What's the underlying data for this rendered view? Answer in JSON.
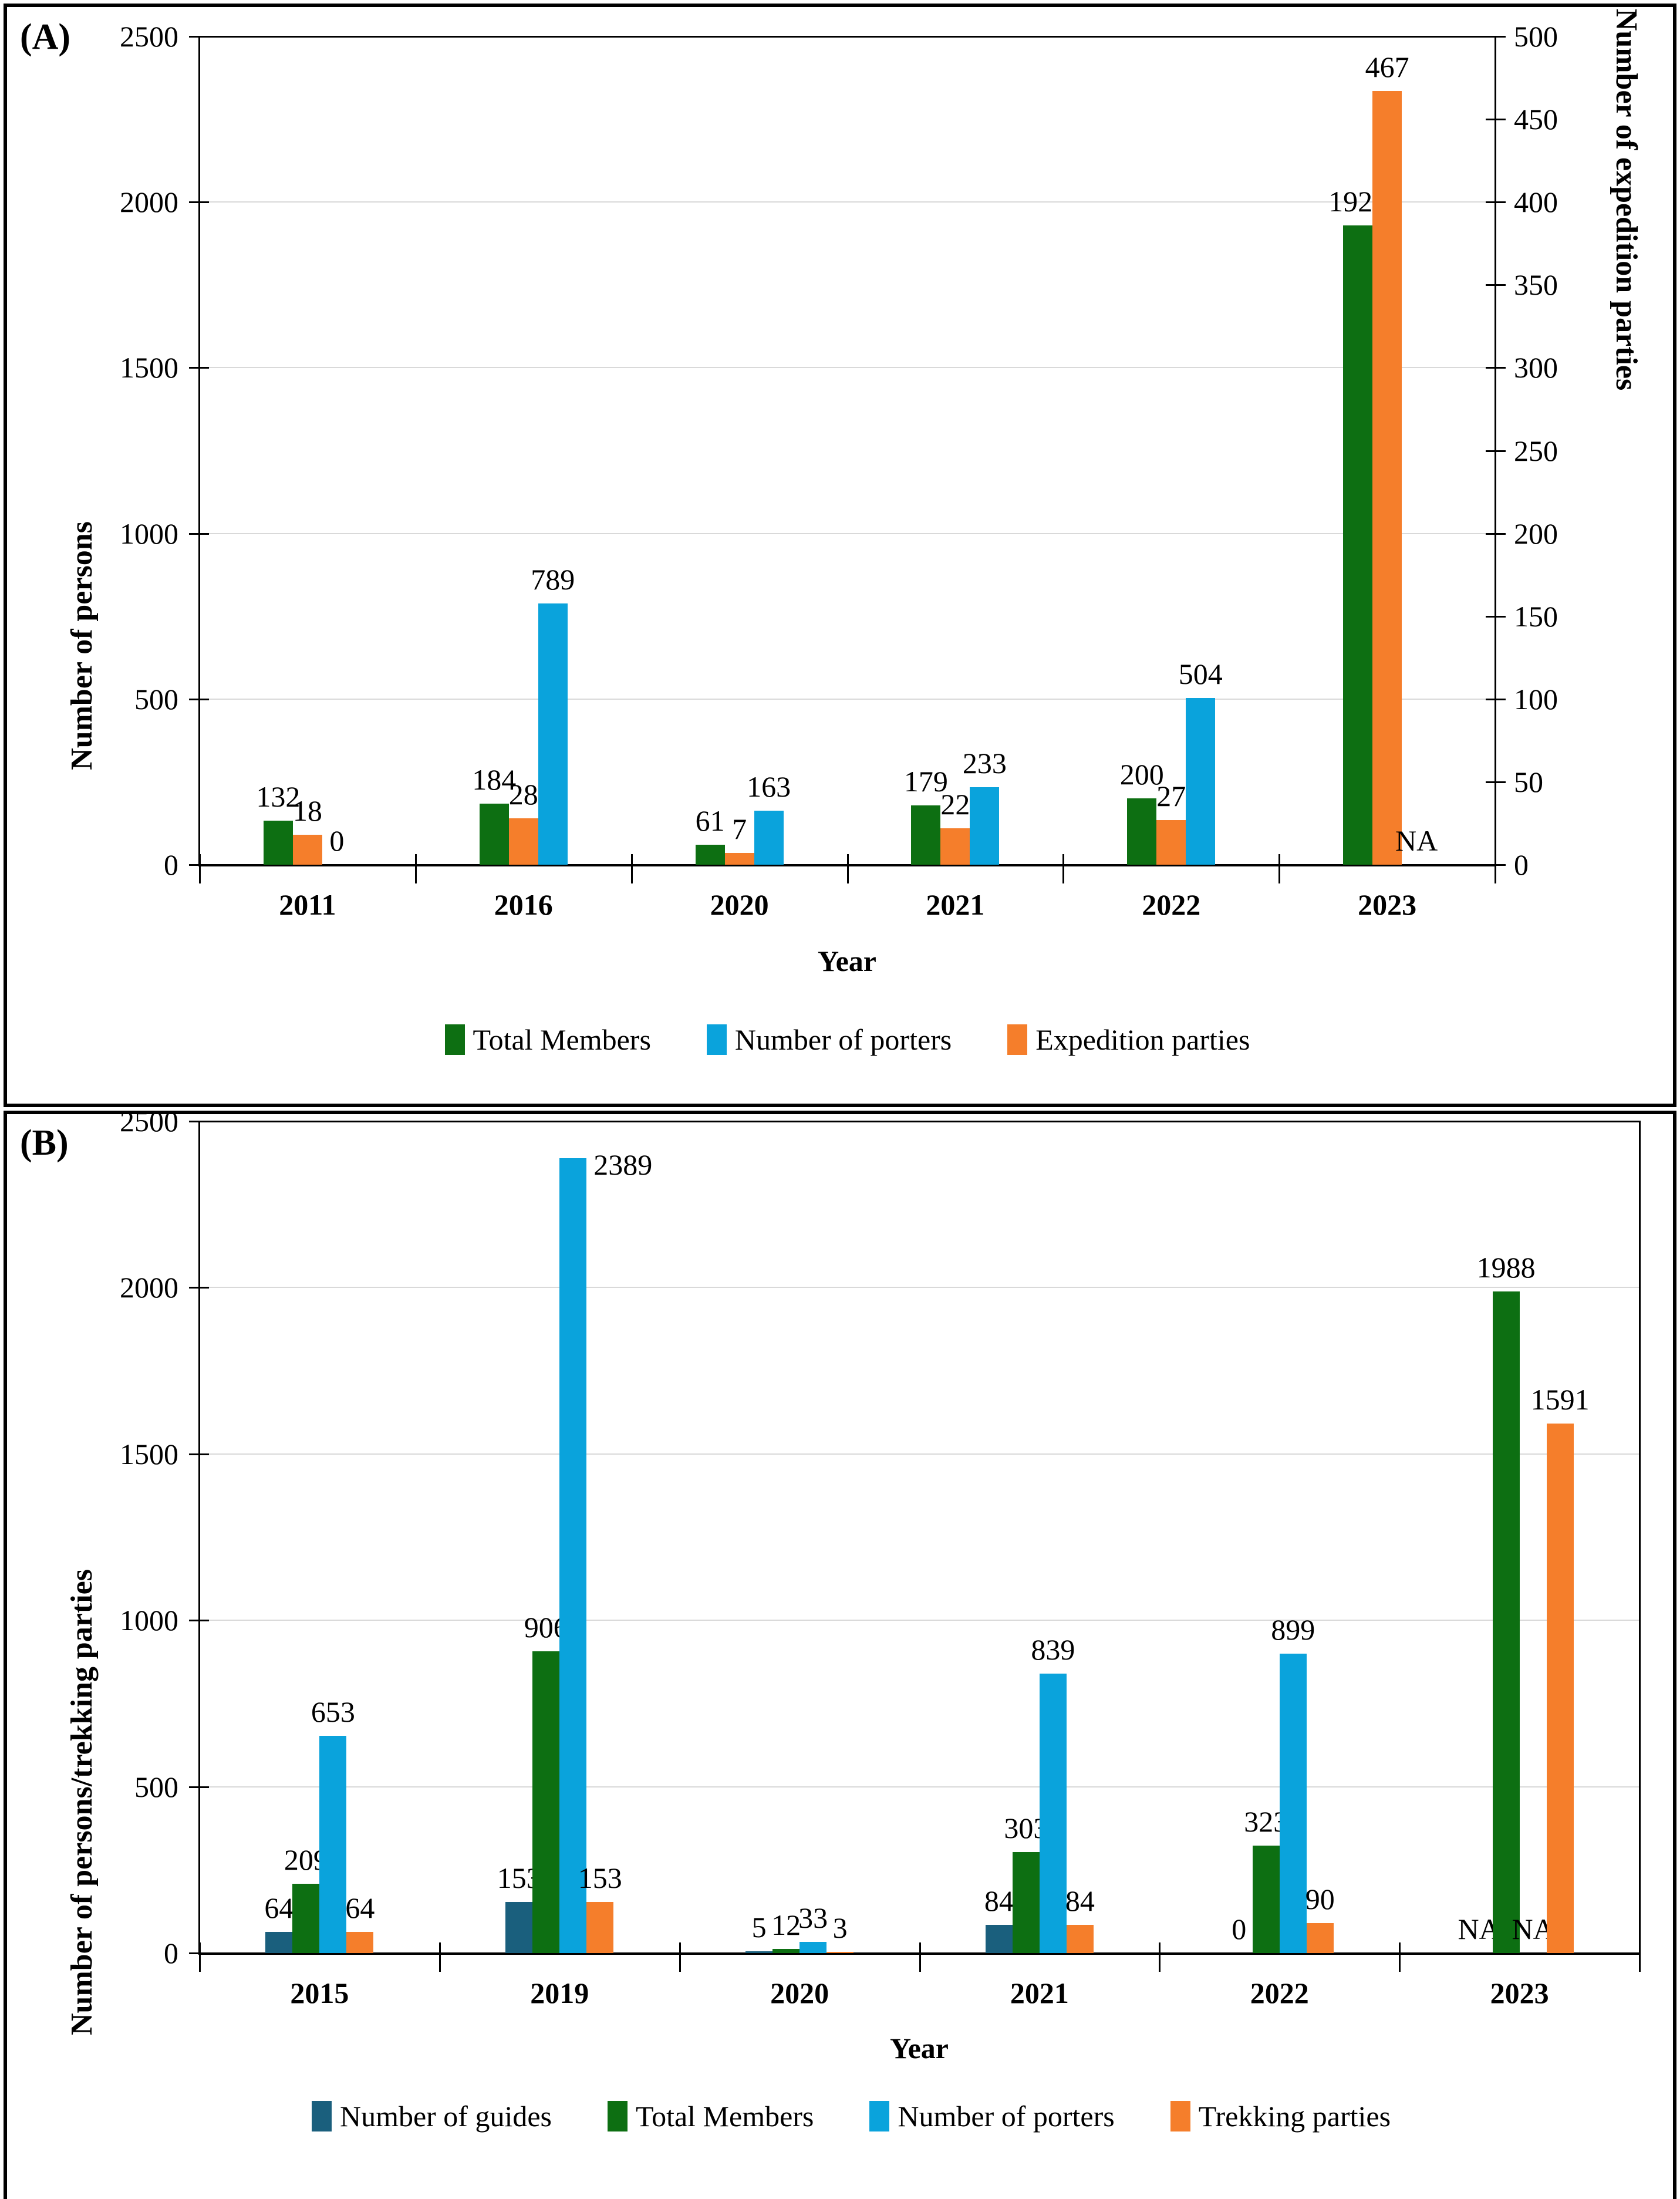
{
  "chart_data": {
    "type": "bar",
    "panels": [
      {
        "label": "(A)",
        "type": "bar",
        "grid": true,
        "legend_position": "bottom",
        "x": {
          "title": "Year",
          "categories": [
            "2011",
            "2016",
            "2020",
            "2021",
            "2022",
            "2023"
          ]
        },
        "y_left": {
          "title": "Number of persons",
          "min": 0,
          "max": 2500,
          "ticks": [
            0,
            500,
            1000,
            1500,
            2000,
            2500
          ]
        },
        "y_right": {
          "title": "Number of expedition parties",
          "min": 0,
          "max": 500,
          "ticks": [
            0,
            50,
            100,
            150,
            200,
            250,
            300,
            350,
            400,
            450,
            500
          ]
        },
        "series": [
          {
            "name": "Total Members",
            "color": "#0d6f12",
            "axis": "left",
            "values": [
              132,
              184,
              61,
              179,
              200,
              1929
            ],
            "labels": [
              "132",
              "184",
              "61",
              "179",
              "200",
              "1929"
            ]
          },
          {
            "name": "Expedition parties",
            "color": "#f57e2b",
            "axis": "right",
            "values": [
              18,
              28,
              7,
              22,
              27,
              467
            ],
            "labels": [
              "18",
              "28",
              "7",
              "22",
              "27",
              "467"
            ]
          },
          {
            "name": "Number of porters",
            "color": "#0aa3dc",
            "axis": "left",
            "values": [
              0,
              789,
              163,
              233,
              504,
              null
            ],
            "labels": [
              "0",
              "789",
              "163",
              "233",
              "504",
              "NA"
            ]
          }
        ],
        "legend": [
          {
            "label": "Total Members",
            "color": "#0d6f12"
          },
          {
            "label": "Number of porters",
            "color": "#0aa3dc"
          },
          {
            "label": "Expedition parties",
            "color": "#f57e2b"
          }
        ]
      },
      {
        "label": "(B)",
        "type": "bar",
        "grid": true,
        "legend_position": "bottom",
        "x": {
          "title": "Year",
          "categories": [
            "2015",
            "2019",
            "2020",
            "2021",
            "2022",
            "2023"
          ]
        },
        "y_left": {
          "title": "Number of persons/trekking parties",
          "min": 0,
          "max": 2500,
          "ticks": [
            0,
            500,
            1000,
            1500,
            2000,
            2500
          ]
        },
        "series": [
          {
            "name": "Number of guides",
            "color": "#1a5f7d",
            "axis": "left",
            "values": [
              64,
              153,
              5,
              84,
              0,
              null
            ],
            "labels": [
              "64",
              "153",
              "5",
              "84",
              "0",
              "NA"
            ]
          },
          {
            "name": "Total Members",
            "color": "#0d6f12",
            "axis": "left",
            "values": [
              209,
              906,
              12,
              303,
              323,
              1988
            ],
            "labels": [
              "209",
              "906",
              "12",
              "303",
              "323",
              "1988"
            ]
          },
          {
            "name": "Number of porters",
            "color": "#0aa3dc",
            "axis": "left",
            "values": [
              653,
              2389,
              33,
              839,
              899,
              null
            ],
            "labels": [
              "653",
              "2389",
              "33",
              "839",
              "899",
              "NA"
            ]
          },
          {
            "name": "Trekking parties",
            "color": "#f57e2b",
            "axis": "left",
            "values": [
              64,
              153,
              3,
              84,
              90,
              1591
            ],
            "labels": [
              "64",
              "153",
              "3",
              "84",
              "90",
              "1591"
            ]
          }
        ],
        "legend": [
          {
            "label": "Number of guides",
            "color": "#1a5f7d"
          },
          {
            "label": "Total Members",
            "color": "#0d6f12"
          },
          {
            "label": "Number of porters",
            "color": "#0aa3dc"
          },
          {
            "label": "Trekking parties",
            "color": "#f57e2b"
          }
        ]
      }
    ]
  }
}
